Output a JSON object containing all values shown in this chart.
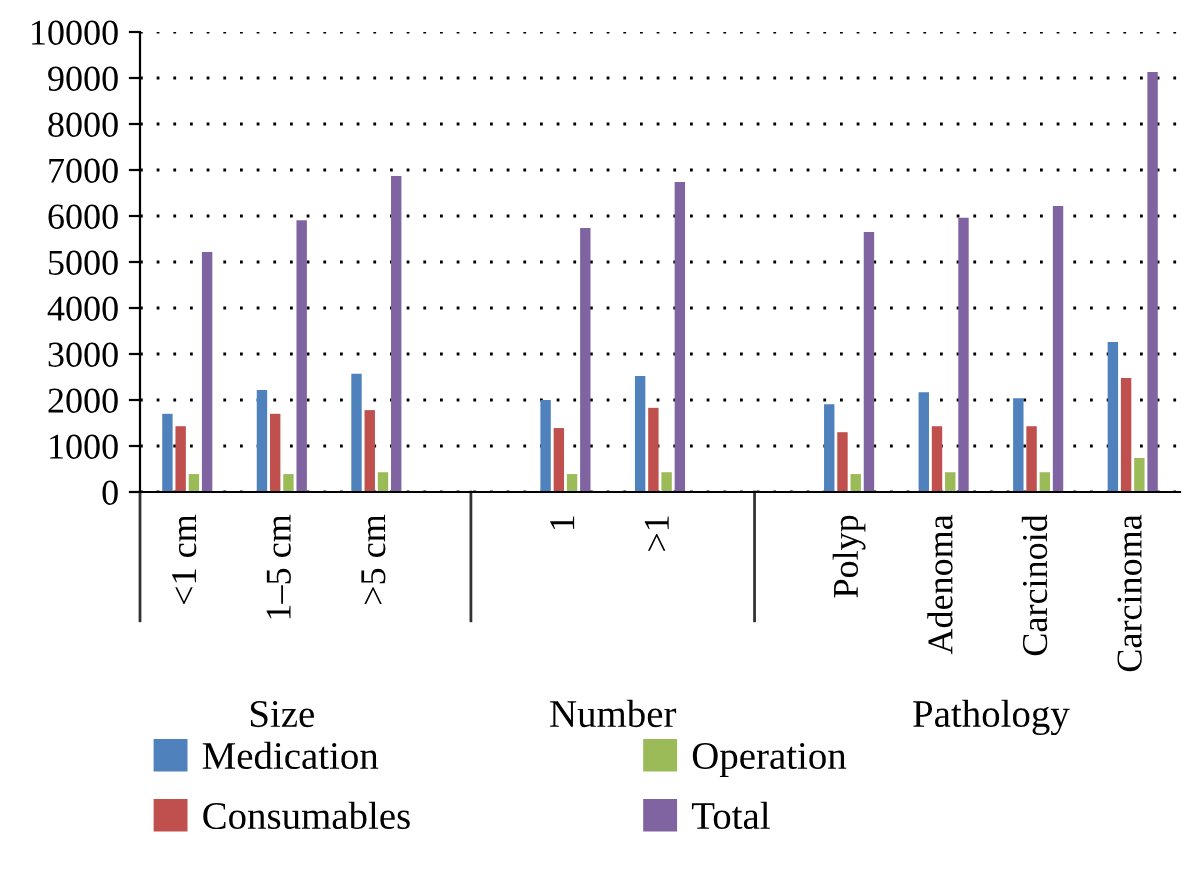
{
  "chart_data": {
    "type": "bar",
    "categories": [
      "<1 cm",
      "1–5 cm",
      ">5 cm",
      null,
      "1",
      ">1",
      null,
      "Polyp",
      "Adenoma",
      "Carcinoid",
      "Carcinoma"
    ],
    "series": [
      {
        "name": "Medication",
        "color": "#4f81bd",
        "values": [
          1700,
          2220,
          2570,
          null,
          2000,
          2520,
          null,
          1910,
          2170,
          2040,
          3260
        ]
      },
      {
        "name": "Consumables",
        "color": "#c0504d",
        "values": [
          1430,
          1700,
          1780,
          null,
          1390,
          1830,
          null,
          1300,
          1430,
          1430,
          2480
        ]
      },
      {
        "name": "Operation",
        "color": "#9bbb59",
        "values": [
          390,
          390,
          430,
          null,
          390,
          430,
          null,
          390,
          430,
          430,
          740
        ]
      },
      {
        "name": "Total",
        "color": "#8064a2",
        "values": [
          5220,
          5910,
          6870,
          null,
          5740,
          6740,
          null,
          5650,
          5960,
          6220,
          9130
        ]
      }
    ],
    "annotations": [
      "Size",
      "Number",
      "Pathology"
    ],
    "ylim": [
      0,
      10000
    ],
    "yticks": [
      0,
      1000,
      2000,
      3000,
      4000,
      5000,
      6000,
      7000,
      8000,
      9000,
      10000
    ],
    "grid": "y",
    "legend": "bottom"
  }
}
